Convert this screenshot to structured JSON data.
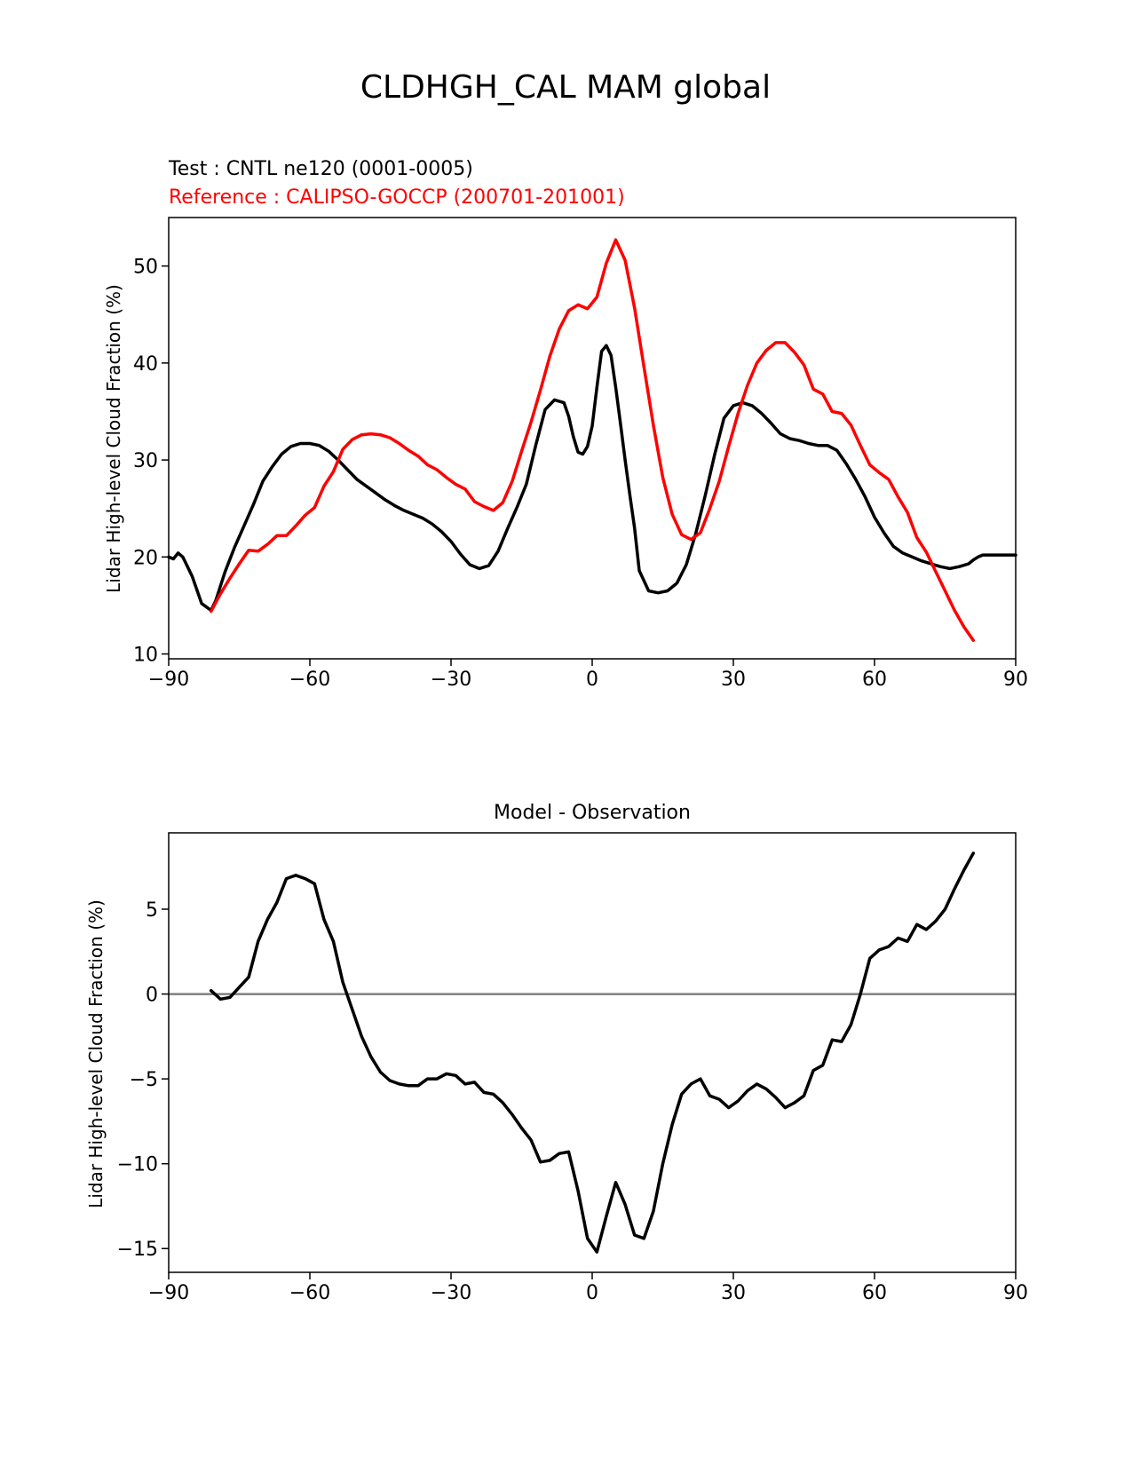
{
  "figure_title": "CLDHGH_CAL MAM global",
  "colors": {
    "test": "#000000",
    "reference": "#ff0000",
    "zero_line": "#808080",
    "axes": "#000000"
  },
  "chart_data": [
    {
      "type": "line",
      "id": "top",
      "test_label": "Test : CNTL ne120 (0001-0005)",
      "reference_label": "Reference : CALIPSO-GOCCP (200701-201001)",
      "xlabel": "",
      "ylabel": "Lidar High-level Cloud Fraction (%)",
      "xlim": [
        -90,
        90
      ],
      "ylim": [
        9.5,
        55
      ],
      "xticks": [
        -90,
        -60,
        -30,
        0,
        30,
        60,
        90
      ],
      "xtick_labels": [
        "−90",
        "−60",
        "−30",
        "0",
        "30",
        "60",
        "90"
      ],
      "yticks": [
        10,
        20,
        30,
        40,
        50
      ],
      "ytick_labels": [
        "10",
        "20",
        "30",
        "40",
        "50"
      ],
      "series": [
        {
          "name": "Test : CNTL ne120 (0001-0005)",
          "color": "#000000",
          "x": [
            -90,
            -89,
            -88,
            -87,
            -86,
            -85,
            -83,
            -81,
            -80,
            -78,
            -76,
            -74,
            -72,
            -70,
            -68,
            -66,
            -64,
            -62,
            -60,
            -58,
            -56,
            -54,
            -52,
            -50,
            -48,
            -46,
            -44,
            -42,
            -40,
            -38,
            -36,
            -34,
            -32,
            -30,
            -28,
            -26,
            -24,
            -22,
            -20,
            -18,
            -16,
            -14,
            -12,
            -10,
            -8,
            -6,
            -5,
            -4,
            -3,
            -2,
            -1,
            0,
            1,
            2,
            3,
            4,
            5,
            6,
            7,
            8,
            9,
            10,
            12,
            14,
            16,
            18,
            20,
            22,
            24,
            26,
            28,
            30,
            32,
            34,
            36,
            38,
            40,
            42,
            44,
            46,
            48,
            50,
            52,
            54,
            56,
            58,
            60,
            62,
            64,
            66,
            68,
            70,
            72,
            74,
            76,
            78,
            80,
            81,
            82,
            83,
            84,
            85,
            86,
            87,
            88,
            89,
            90
          ],
          "values": [
            20.0,
            19.8,
            20.4,
            20.0,
            19.0,
            18.0,
            15.2,
            14.5,
            15.5,
            18.5,
            21.0,
            23.2,
            25.4,
            27.8,
            29.3,
            30.6,
            31.4,
            31.7,
            31.7,
            31.5,
            30.9,
            30.0,
            29.0,
            28.0,
            27.3,
            26.6,
            25.9,
            25.3,
            24.8,
            24.4,
            24.0,
            23.4,
            22.6,
            21.6,
            20.3,
            19.2,
            18.8,
            19.1,
            20.6,
            22.9,
            25.1,
            27.5,
            31.5,
            35.2,
            36.2,
            35.9,
            34.5,
            32.4,
            30.8,
            30.6,
            31.4,
            33.5,
            37.5,
            41.2,
            41.8,
            40.8,
            37.5,
            33.8,
            30.0,
            26.4,
            23.0,
            18.6,
            16.5,
            16.3,
            16.5,
            17.3,
            19.2,
            22.4,
            26.3,
            30.5,
            34.3,
            35.6,
            35.9,
            35.6,
            34.8,
            33.8,
            32.7,
            32.2,
            32.0,
            31.7,
            31.5,
            31.5,
            31.0,
            29.6,
            28.0,
            26.2,
            24.1,
            22.5,
            21.1,
            20.4,
            20.0,
            19.6,
            19.3,
            19.0,
            18.8,
            19.0,
            19.3,
            19.7,
            20.0,
            20.2,
            20.2,
            20.2,
            20.2,
            20.2,
            20.2,
            20.2,
            20.2
          ]
        },
        {
          "name": "Reference : CALIPSO-GOCCP (200701-201001)",
          "color": "#ff0000",
          "x": [
            -81,
            -79,
            -77,
            -75,
            -73,
            -71,
            -69,
            -67,
            -65,
            -63,
            -61,
            -59,
            -57,
            -55,
            -53,
            -51,
            -49,
            -47,
            -45,
            -43,
            -41,
            -39,
            -37,
            -35,
            -33,
            -31,
            -29,
            -27,
            -25,
            -23,
            -21,
            -19,
            -17,
            -15,
            -13,
            -11,
            -9,
            -7,
            -5,
            -3,
            -1,
            1,
            3,
            5,
            7,
            9,
            11,
            13,
            15,
            17,
            19,
            21,
            23,
            25,
            27,
            29,
            31,
            33,
            35,
            37,
            39,
            41,
            43,
            45,
            47,
            49,
            51,
            53,
            55,
            57,
            59,
            61,
            63,
            65,
            67,
            69,
            71,
            73,
            75,
            77,
            79,
            81
          ],
          "values": [
            14.4,
            16.2,
            17.8,
            19.3,
            20.7,
            20.6,
            21.3,
            22.2,
            22.2,
            23.2,
            24.3,
            25.1,
            27.3,
            28.8,
            31.1,
            32.1,
            32.6,
            32.7,
            32.6,
            32.3,
            31.7,
            31.0,
            30.4,
            29.5,
            29.0,
            28.2,
            27.5,
            27.0,
            25.7,
            25.2,
            24.8,
            25.6,
            27.8,
            30.9,
            33.9,
            37.2,
            40.7,
            43.5,
            45.4,
            46.0,
            45.6,
            46.8,
            50.3,
            52.7,
            50.6,
            45.7,
            39.6,
            33.6,
            28.2,
            24.4,
            22.3,
            21.8,
            22.5,
            25.0,
            27.8,
            31.4,
            34.8,
            37.7,
            40.0,
            41.3,
            42.1,
            42.1,
            41.1,
            39.8,
            37.3,
            36.8,
            35.0,
            34.8,
            33.6,
            31.5,
            29.5,
            28.7,
            28.0,
            26.2,
            24.6,
            22.0,
            20.5,
            18.5,
            16.5,
            14.5,
            12.8,
            11.4
          ]
        }
      ]
    },
    {
      "type": "line",
      "id": "bottom",
      "title": "Model - Observation",
      "xlabel": "",
      "ylabel": "Lidar High-level Cloud Fraction (%)",
      "xlim": [
        -90,
        90
      ],
      "ylim": [
        -16.4,
        9.5
      ],
      "xticks": [
        -90,
        -60,
        -30,
        0,
        30,
        60,
        90
      ],
      "xtick_labels": [
        "−90",
        "−60",
        "−30",
        "0",
        "30",
        "60",
        "90"
      ],
      "yticks": [
        -15,
        -10,
        -5,
        0,
        5
      ],
      "ytick_labels": [
        "−15",
        "−10",
        "−5",
        "0",
        "5"
      ],
      "zero_line": 0,
      "series": [
        {
          "name": "Model - Observation",
          "color": "#000000",
          "x": [
            -81,
            -79,
            -77,
            -75,
            -73,
            -71,
            -69,
            -67,
            -65,
            -63,
            -61,
            -59,
            -57,
            -55,
            -53,
            -51,
            -49,
            -47,
            -45,
            -43,
            -41,
            -39,
            -37,
            -35,
            -33,
            -31,
            -29,
            -27,
            -25,
            -23,
            -21,
            -19,
            -17,
            -15,
            -13,
            -11,
            -9,
            -7,
            -5,
            -3,
            -1,
            1,
            3,
            5,
            7,
            9,
            11,
            13,
            15,
            17,
            19,
            21,
            23,
            25,
            27,
            29,
            31,
            33,
            35,
            37,
            39,
            41,
            43,
            45,
            47,
            49,
            51,
            53,
            55,
            57,
            59,
            61,
            63,
            65,
            67,
            69,
            71,
            73,
            75,
            77,
            79,
            81
          ],
          "values": [
            0.2,
            -0.3,
            -0.2,
            0.4,
            1.0,
            3.1,
            4.4,
            5.4,
            6.8,
            7.0,
            6.8,
            6.5,
            4.4,
            3.1,
            0.7,
            -0.9,
            -2.5,
            -3.7,
            -4.6,
            -5.1,
            -5.3,
            -5.4,
            -5.4,
            -5.0,
            -5.0,
            -4.7,
            -4.8,
            -5.3,
            -5.2,
            -5.8,
            -5.9,
            -6.4,
            -7.1,
            -7.9,
            -8.6,
            -9.9,
            -9.8,
            -9.4,
            -9.3,
            -11.6,
            -14.4,
            -15.2,
            -13.1,
            -11.1,
            -12.4,
            -14.2,
            -14.4,
            -12.8,
            -10.0,
            -7.7,
            -5.9,
            -5.3,
            -5.0,
            -6.0,
            -6.2,
            -6.7,
            -6.3,
            -5.7,
            -5.3,
            -5.6,
            -6.1,
            -6.7,
            -6.4,
            -6.0,
            -4.5,
            -4.2,
            -2.7,
            -2.8,
            -1.8,
            0.0,
            2.1,
            2.6,
            2.8,
            3.3,
            3.1,
            4.1,
            3.8,
            4.3,
            5.0,
            6.2,
            7.3,
            8.3
          ]
        }
      ]
    }
  ]
}
